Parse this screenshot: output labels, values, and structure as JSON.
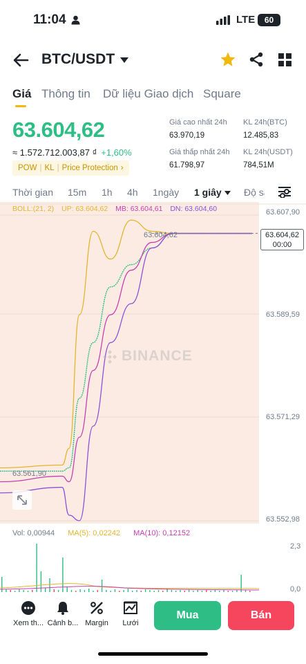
{
  "status_bar": {
    "time": "11:04",
    "network": "LTE",
    "battery": "60"
  },
  "header": {
    "title": "BTC/USDT"
  },
  "tabs": [
    {
      "label": "Giá",
      "active": true
    },
    {
      "label": "Thông tin",
      "active": false
    },
    {
      "label": "Dữ liệu Giao dịch",
      "active": false
    },
    {
      "label": "Square",
      "active": false
    }
  ],
  "price": {
    "last": "63.604,62",
    "fiat": "≈ 1.572.712.003,87 ₫",
    "change": "+1,60%",
    "tags": [
      "POW",
      "KL",
      "Price Protection"
    ]
  },
  "stats": {
    "high_label": "Giá cao nhất 24h",
    "high_value": "63.970,19",
    "vol_btc_label": "KL 24h(BTC)",
    "vol_btc_value": "12.485,83",
    "low_label": "Giá thấp nhất 24h",
    "low_value": "61.798,97",
    "vol_usdt_label": "KL 24h(USDT)",
    "vol_usdt_value": "784,51M"
  },
  "timeframes": {
    "items": [
      "Thời gian",
      "15m",
      "1h",
      "4h",
      "1ngày",
      "1 giây",
      "Độ sâu"
    ],
    "active": "1 giây"
  },
  "boll": {
    "name": "BOLL:(21, 2)",
    "up": "UP: 63.604,62",
    "mb": "MB: 63.604,61",
    "dn": "DN: 63.604,60"
  },
  "chart": {
    "current_price": "63.604,62",
    "countdown": "00:00",
    "y_labels": [
      "63.607,90",
      "63.589,59",
      "63.571,29",
      "63.552,98"
    ],
    "inline_high": "63.604,62",
    "inline_low": "63.561,90",
    "watermark": "BINANCE",
    "volume_labels": [
      "2,3",
      "0,0"
    ]
  },
  "chart_data": {
    "type": "line",
    "ylim": [
      63552.98,
      63607.9
    ],
    "series": [
      {
        "name": "Price",
        "values": [
          63561.9,
          63561.9,
          63562.5,
          63575,
          63585,
          63595,
          63599,
          63602,
          63604.62,
          63604.62,
          63604.62,
          63604.62
        ]
      },
      {
        "name": "UP",
        "values": [
          63562.5,
          63563,
          63566,
          63590,
          63605,
          63600,
          63607,
          63605,
          63604.62,
          63604.62,
          63604.62,
          63604.62
        ]
      },
      {
        "name": "MB",
        "values": [
          63560,
          63561,
          63560,
          63568,
          63580,
          63590,
          63598,
          63603,
          63604.61,
          63604.61,
          63604.61,
          63604.61
        ]
      },
      {
        "name": "DN",
        "values": [
          63558,
          63559,
          63554,
          63553,
          63570,
          63585,
          63592,
          63602,
          63604.6,
          63604.6,
          63604.6,
          63604.6
        ]
      }
    ],
    "volume": {
      "vol": "Vol: 0,00944",
      "ma5": "MA(5): 0,02242",
      "ma10": "MA(10): 0,12152"
    }
  },
  "bottom_bar": {
    "items": [
      "Xem th...",
      "Cảnh b...",
      "Margin",
      "Lưới"
    ],
    "buy": "Mua",
    "sell": "Bán"
  },
  "colors": {
    "green": "#2ebd85",
    "red": "#f6465d",
    "yellow": "#f0b90b",
    "boll_up": "#e3b52d",
    "boll_mb": "#c640b0",
    "boll_dn": "#8a52d6"
  }
}
